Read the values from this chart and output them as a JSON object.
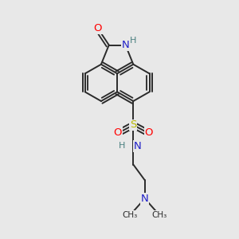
{
  "bg_color": "#e8e8e8",
  "bond_color": "#2a2a2a",
  "bond_width": 1.4,
  "dbo": 0.055,
  "atom_colors": {
    "O": "#ff0000",
    "N_blue": "#2020c8",
    "N_teal": "#4a8080",
    "S": "#b8b800",
    "C": "#2a2a2a"
  },
  "fs_main": 9.5,
  "fs_small": 8.0,
  "xlim": [
    -1.55,
    1.65
  ],
  "ylim": [
    -3.1,
    2.1
  ]
}
